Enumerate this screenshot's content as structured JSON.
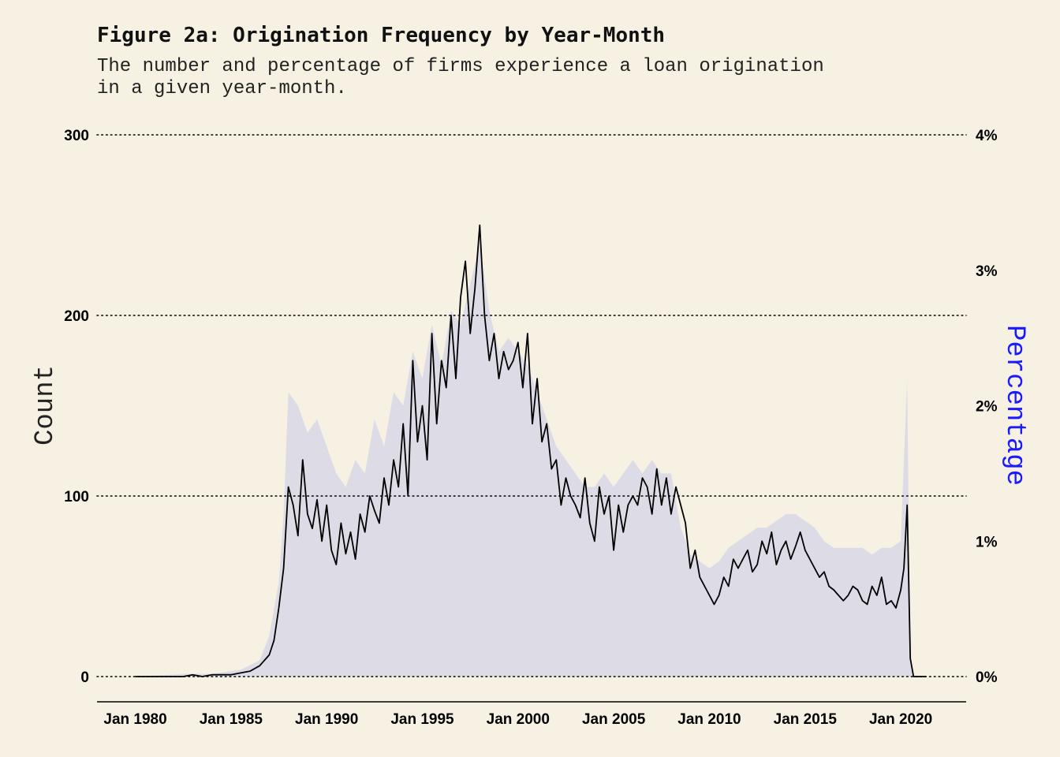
{
  "title": "Figure 2a: Origination Frequency by Year-Month",
  "subtitle": "The number and percentage of firms experience a loan origination\nin a given year-month.",
  "colors": {
    "background": "#f6f1e3",
    "count_line": "#000000",
    "percentage_area": "#dddbe6",
    "percentage_axis_title": "#1a1aff",
    "grid": "#000000"
  },
  "chart_data": {
    "type": "line",
    "title": "Figure 2a: Origination Frequency by Year-Month",
    "subtitle": "The number and percentage of firms experience a loan origination in a given year-month.",
    "xlabel": "",
    "ylabel": "Count",
    "ylabel_right": "Percentage",
    "x_ticks": [
      "Jan 1980",
      "Jan 1985",
      "Jan 1990",
      "Jan 1995",
      "Jan 2000",
      "Jan 2005",
      "Jan 2010",
      "Jan 2015",
      "Jan 2020"
    ],
    "y_ticks_left": [
      "0",
      "100",
      "200",
      "300"
    ],
    "y_ticks_right": [
      "0%",
      "1%",
      "2%",
      "3%",
      "4%"
    ],
    "xlim": [
      "1978-01",
      "2023-06"
    ],
    "ylim": [
      -15,
      300
    ],
    "ylim_right_percent": [
      0,
      4
    ],
    "grid": "horizontal dotted at 0, 100, 200, 300",
    "series": [
      {
        "name": "Count",
        "style": "line",
        "x": [
          "1980-01",
          "1981-01",
          "1982-01",
          "1982-07",
          "1983-01",
          "1983-07",
          "1984-01",
          "1985-01",
          "1985-07",
          "1986-01",
          "1986-07",
          "1987-01",
          "1987-04",
          "1987-07",
          "1987-10",
          "1988-01",
          "1988-04",
          "1988-07",
          "1988-10",
          "1989-01",
          "1989-04",
          "1989-07",
          "1989-10",
          "1990-01",
          "1990-04",
          "1990-07",
          "1990-10",
          "1991-01",
          "1991-04",
          "1991-07",
          "1991-10",
          "1992-01",
          "1992-04",
          "1992-07",
          "1992-10",
          "1993-01",
          "1993-04",
          "1993-07",
          "1993-10",
          "1994-01",
          "1994-04",
          "1994-07",
          "1994-10",
          "1995-01",
          "1995-04",
          "1995-07",
          "1995-10",
          "1996-01",
          "1996-04",
          "1996-07",
          "1996-10",
          "1997-01",
          "1997-04",
          "1997-07",
          "1997-10",
          "1998-01",
          "1998-04",
          "1998-07",
          "1998-10",
          "1999-01",
          "1999-04",
          "1999-07",
          "1999-10",
          "2000-01",
          "2000-04",
          "2000-07",
          "2000-10",
          "2001-01",
          "2001-04",
          "2001-07",
          "2001-10",
          "2002-01",
          "2002-04",
          "2002-07",
          "2002-10",
          "2003-01",
          "2003-04",
          "2003-07",
          "2003-10",
          "2004-01",
          "2004-04",
          "2004-07",
          "2004-10",
          "2005-01",
          "2005-04",
          "2005-07",
          "2005-10",
          "2006-01",
          "2006-04",
          "2006-07",
          "2006-10",
          "2007-01",
          "2007-04",
          "2007-07",
          "2007-10",
          "2008-01",
          "2008-04",
          "2008-07",
          "2008-10",
          "2009-01",
          "2009-04",
          "2009-07",
          "2009-10",
          "2010-01",
          "2010-04",
          "2010-07",
          "2010-10",
          "2011-01",
          "2011-04",
          "2011-07",
          "2011-10",
          "2012-01",
          "2012-04",
          "2012-07",
          "2012-10",
          "2013-01",
          "2013-04",
          "2013-07",
          "2013-10",
          "2014-01",
          "2014-04",
          "2014-07",
          "2014-10",
          "2015-01",
          "2015-04",
          "2015-07",
          "2015-10",
          "2016-01",
          "2016-04",
          "2016-07",
          "2016-10",
          "2017-01",
          "2017-04",
          "2017-07",
          "2017-10",
          "2018-01",
          "2018-04",
          "2018-07",
          "2018-10",
          "2019-01",
          "2019-04",
          "2019-07",
          "2019-10",
          "2020-01",
          "2020-03",
          "2020-05",
          "2020-07",
          "2020-09",
          "2021-01",
          "2021-05"
        ],
        "values": [
          0,
          0,
          0,
          0,
          1,
          0,
          1,
          1,
          2,
          3,
          6,
          12,
          20,
          38,
          60,
          105,
          95,
          78,
          120,
          90,
          82,
          98,
          75,
          95,
          70,
          62,
          85,
          68,
          80,
          65,
          90,
          80,
          100,
          92,
          85,
          110,
          95,
          120,
          105,
          140,
          100,
          175,
          130,
          150,
          120,
          190,
          140,
          175,
          160,
          200,
          165,
          210,
          230,
          190,
          215,
          250,
          200,
          175,
          190,
          165,
          180,
          170,
          175,
          185,
          160,
          190,
          140,
          165,
          130,
          140,
          115,
          120,
          95,
          110,
          100,
          95,
          88,
          110,
          85,
          75,
          105,
          90,
          100,
          70,
          95,
          80,
          95,
          100,
          95,
          110,
          105,
          90,
          115,
          95,
          110,
          90,
          105,
          95,
          85,
          60,
          70,
          55,
          50,
          45,
          40,
          45,
          55,
          50,
          65,
          60,
          65,
          70,
          58,
          62,
          75,
          68,
          80,
          62,
          70,
          75,
          65,
          72,
          80,
          70,
          65,
          60,
          55,
          58,
          50,
          48,
          45,
          42,
          45,
          50,
          48,
          42,
          40,
          50,
          45,
          55,
          40,
          42,
          38,
          48,
          60,
          95,
          10,
          0,
          0,
          0
        ]
      },
      {
        "name": "Percentage",
        "style": "area",
        "x": [
          "1980-01",
          "1982-07",
          "1984-01",
          "1985-07",
          "1986-07",
          "1987-01",
          "1987-07",
          "1987-10",
          "1988-01",
          "1988-07",
          "1989-01",
          "1989-07",
          "1990-01",
          "1990-07",
          "1991-01",
          "1991-07",
          "1992-01",
          "1992-07",
          "1993-01",
          "1993-07",
          "1994-01",
          "1994-07",
          "1995-01",
          "1995-07",
          "1996-01",
          "1996-07",
          "1997-01",
          "1997-07",
          "1998-01",
          "1998-07",
          "1999-01",
          "1999-07",
          "2000-01",
          "2000-07",
          "2001-01",
          "2001-07",
          "2002-01",
          "2002-07",
          "2003-01",
          "2003-07",
          "2004-01",
          "2004-07",
          "2005-01",
          "2005-07",
          "2006-01",
          "2006-07",
          "2007-01",
          "2007-07",
          "2008-01",
          "2008-07",
          "2009-01",
          "2009-07",
          "2010-01",
          "2010-07",
          "2011-01",
          "2011-07",
          "2012-01",
          "2012-07",
          "2013-01",
          "2013-07",
          "2014-01",
          "2014-07",
          "2015-01",
          "2015-07",
          "2016-01",
          "2016-07",
          "2017-01",
          "2017-07",
          "2018-01",
          "2018-07",
          "2019-01",
          "2019-07",
          "2020-01",
          "2020-05",
          "2020-07",
          "2020-09",
          "2021-05"
        ],
        "values": [
          0,
          0.02,
          0.02,
          0.05,
          0.12,
          0.3,
          0.7,
          1.2,
          2.1,
          2.0,
          1.8,
          1.9,
          1.7,
          1.5,
          1.4,
          1.6,
          1.5,
          1.9,
          1.7,
          2.1,
          2.0,
          2.4,
          2.2,
          2.6,
          2.3,
          2.7,
          2.6,
          2.9,
          3.2,
          2.7,
          2.4,
          2.5,
          2.4,
          2.3,
          2.1,
          1.9,
          1.7,
          1.6,
          1.5,
          1.4,
          1.4,
          1.5,
          1.4,
          1.5,
          1.6,
          1.5,
          1.6,
          1.5,
          1.5,
          1.1,
          0.9,
          0.85,
          0.8,
          0.85,
          0.95,
          1.0,
          1.05,
          1.1,
          1.1,
          1.15,
          1.2,
          1.2,
          1.15,
          1.1,
          1.0,
          0.95,
          0.95,
          0.95,
          0.95,
          0.9,
          0.95,
          0.95,
          1.0,
          2.2,
          0.1,
          0,
          0
        ]
      }
    ]
  }
}
